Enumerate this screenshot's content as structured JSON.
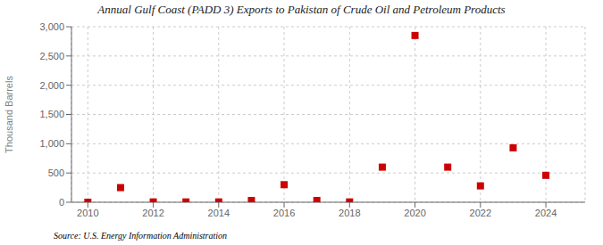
{
  "chart_data": {
    "type": "scatter",
    "title": "Annual Gulf Coast (PADD 3) Exports to Pakistan of Crude Oil and Petroleum Products",
    "y_label": "Thousand Barrels",
    "annotations": [
      "Source: U.S. Energy Information Administration"
    ],
    "x": [
      2010,
      2011,
      2012,
      2013,
      2014,
      2015,
      2016,
      2017,
      2018,
      2019,
      2020,
      2021,
      2022,
      2023,
      2024
    ],
    "values": [
      0,
      250,
      5,
      5,
      5,
      30,
      300,
      30,
      5,
      600,
      2850,
      600,
      280,
      930,
      460
    ],
    "color": "#cc0000",
    "marker": "square",
    "xlim": [
      2009.5,
      2025.2
    ],
    "xticks": [
      2010,
      2012,
      2014,
      2016,
      2018,
      2020,
      2022,
      2024
    ],
    "ylim": [
      0,
      3000
    ],
    "yticks": [
      0,
      500,
      {
        "value": 1000,
        "label": "1,000"
      },
      {
        "value": 1500,
        "label": "1,500"
      },
      {
        "value": 2000,
        "label": "2,000"
      },
      {
        "value": 2500,
        "label": "2,500"
      },
      {
        "value": 3000,
        "label": "3,000"
      }
    ],
    "grid": true
  }
}
